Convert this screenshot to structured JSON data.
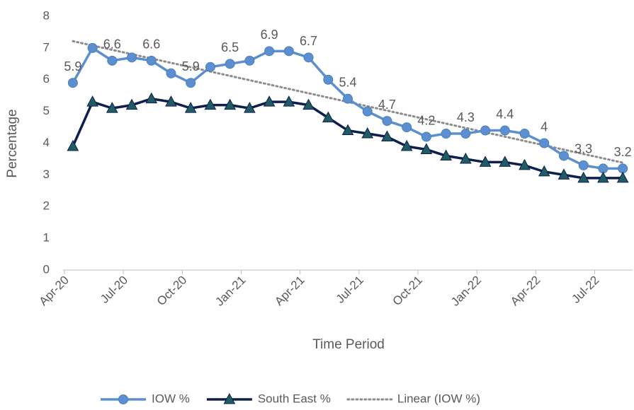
{
  "chart_data": {
    "type": "line",
    "x_label": "Time Period",
    "y_label": "Percentage",
    "categories": [
      "Apr-20",
      null,
      null,
      "Jul-20",
      null,
      null,
      "Oct-20",
      null,
      null,
      "Jan-21",
      null,
      null,
      "Apr-21",
      null,
      null,
      "Jul-21",
      null,
      null,
      "Oct-21",
      null,
      null,
      "Jan-22",
      null,
      null,
      "Apr-22",
      null,
      null,
      "Jul-22",
      null
    ],
    "series": [
      {
        "name": "IOW %",
        "color": "#5b8fcf",
        "marker": "circle",
        "marker_color": "#5b8fcf",
        "values": [
          5.9,
          7.0,
          6.6,
          6.7,
          6.6,
          6.2,
          5.9,
          6.4,
          6.5,
          6.6,
          6.9,
          6.9,
          6.7,
          6.0,
          5.4,
          5.0,
          4.7,
          4.5,
          4.2,
          4.3,
          4.3,
          4.4,
          4.4,
          4.3,
          4.0,
          3.6,
          3.3,
          3.2,
          3.2
        ],
        "data_label_step": 2,
        "trendline": {
          "name": "Linear (IOW %)",
          "color": "#8c8c8c",
          "type": "linear"
        }
      },
      {
        "name": "South East %",
        "color": "#0e1f4d",
        "marker": "triangle",
        "marker_color": "#1f5c63",
        "values": [
          3.9,
          5.3,
          5.1,
          5.2,
          5.4,
          5.3,
          5.1,
          5.2,
          5.2,
          5.1,
          5.3,
          5.3,
          5.2,
          4.8,
          4.4,
          4.3,
          4.2,
          3.9,
          3.8,
          3.6,
          3.5,
          3.4,
          3.4,
          3.3,
          3.1,
          3.0,
          2.9,
          2.9,
          2.9
        ]
      }
    ],
    "ylim": [
      0,
      8
    ],
    "yticks": [
      0,
      1,
      2,
      3,
      4,
      5,
      6,
      7,
      8
    ],
    "grid": false,
    "legend": "bottom"
  }
}
